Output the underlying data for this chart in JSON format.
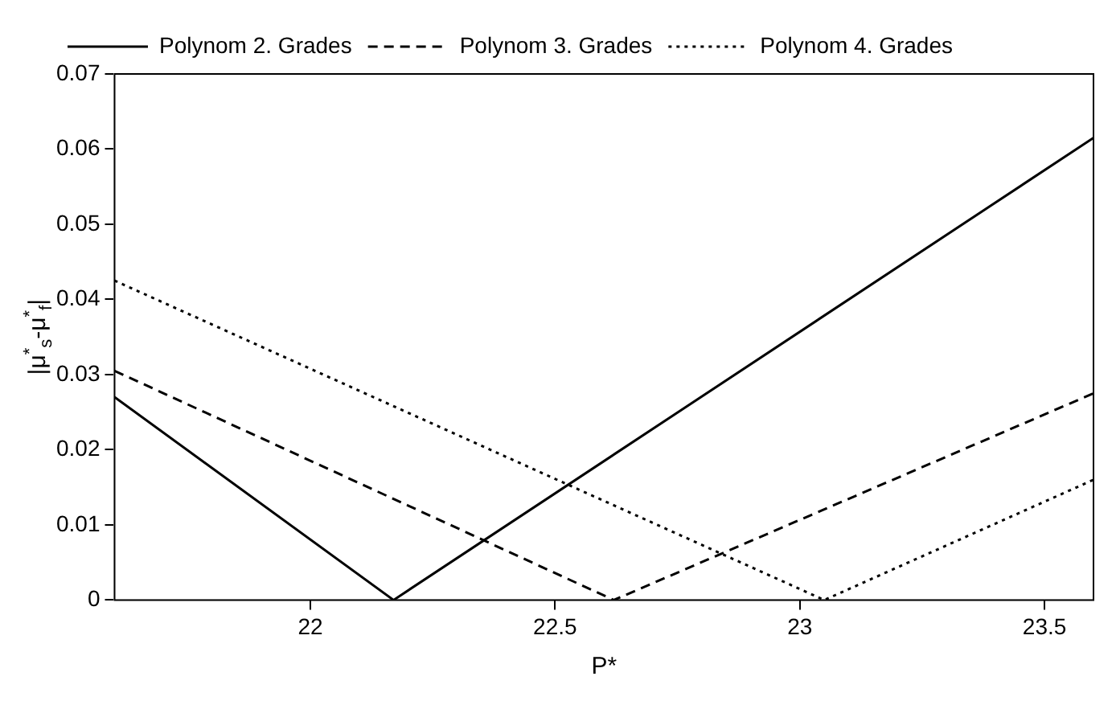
{
  "chart_data": {
    "type": "line",
    "xlabel": "P*",
    "ylabel": "|μ$^{*}$$_{s}$-μ$^{*}$$_{f}$|",
    "xlim": [
      21.6,
      23.6
    ],
    "xticks": [
      22,
      22.5,
      23,
      23.5
    ],
    "ylim": [
      0,
      0.07
    ],
    "yticks": [
      0,
      0.01,
      0.02,
      0.03,
      0.04,
      0.05,
      0.06,
      0.07
    ],
    "legend": "top left",
    "grid": false,
    "series": [
      {
        "name": "Polynom 2. Grades",
        "color": "#000000",
        "line_style": "solid",
        "x": [
          21.6,
          22.17,
          23.6
        ],
        "values": [
          0.027,
          0,
          0.0615
        ]
      },
      {
        "name": "Polynom 3. Grades",
        "color": "#000000",
        "line_style": "dashed",
        "x": [
          21.6,
          22.62,
          23.6
        ],
        "values": [
          0.0305,
          0,
          0.0275
        ]
      },
      {
        "name": "Polynom 4. Grades",
        "color": "#000000",
        "line_style": "dotted",
        "x": [
          21.6,
          23.05,
          23.6
        ],
        "values": [
          0.0425,
          0,
          0.016
        ]
      }
    ]
  }
}
